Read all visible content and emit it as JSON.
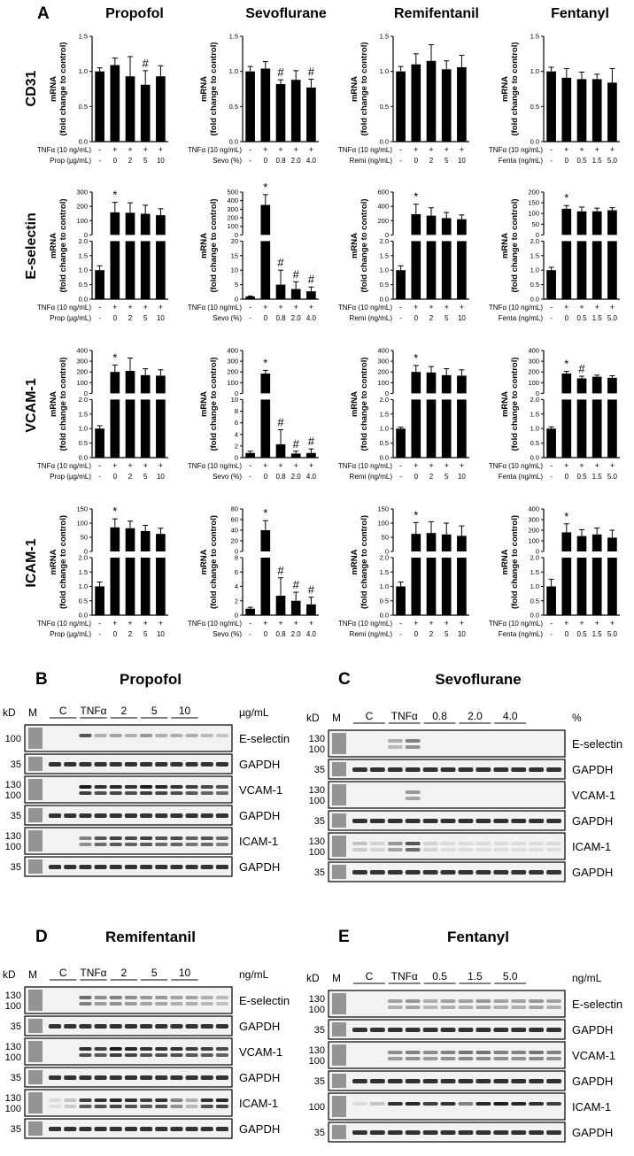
{
  "figure": {
    "panel_a_letter": "A",
    "drugs": [
      "Propofol",
      "Sevoflurane",
      "Remifentanil",
      "Fentanyl"
    ],
    "markers": [
      "CD31",
      "E-selectin",
      "VCAM-1",
      "ICAM-1"
    ],
    "ylabel_line1": "mRNA",
    "ylabel_line2": "(fold change to control)",
    "tnf_label": "TNFα (10 ng/mL)",
    "tnf_signs": [
      "-",
      "+",
      "+",
      "+",
      "+",
      "+"
    ],
    "dose_labels": [
      "Prop (µg/mL)",
      "Sevo (%)",
      "Remi (ng/mL)",
      "Fenta (ng/mL)"
    ],
    "dose_values": [
      [
        "-",
        "0",
        "2",
        "5",
        "10"
      ],
      [
        "-",
        "0",
        "0.8",
        "2.0",
        "4.0"
      ],
      [
        "-",
        "0",
        "2",
        "5",
        "10"
      ],
      [
        "-",
        "0",
        "0.5",
        "1.5",
        "5.0"
      ]
    ]
  },
  "chart_data": [
    {
      "type": "bar",
      "drug": "Propofol",
      "marker": "CD31",
      "categories": [
        "C",
        "TNFα",
        "2",
        "5",
        "10"
      ],
      "values": [
        1.0,
        1.09,
        0.93,
        0.81,
        0.93
      ],
      "errors": [
        0.05,
        0.1,
        0.28,
        0.2,
        0.15
      ],
      "ylim": [
        0,
        1.5
      ],
      "yticks": [
        "0.0",
        "0.5",
        "1.0",
        "1.5"
      ],
      "annotations": [
        "",
        "",
        "",
        "#",
        ""
      ]
    },
    {
      "type": "bar",
      "drug": "Sevoflurane",
      "marker": "CD31",
      "categories": [
        "C",
        "TNFα",
        "0.8",
        "2.0",
        "4.0"
      ],
      "values": [
        1.0,
        1.04,
        0.82,
        0.88,
        0.77
      ],
      "errors": [
        0.07,
        0.1,
        0.06,
        0.13,
        0.12
      ],
      "ylim": [
        0,
        1.5
      ],
      "yticks": [
        "0.0",
        "0.5",
        "1.0",
        "1.5"
      ],
      "annotations": [
        "",
        "",
        "#",
        "",
        "#"
      ]
    },
    {
      "type": "bar",
      "drug": "Remifentanil",
      "marker": "CD31",
      "categories": [
        "C",
        "TNFα",
        "2",
        "5",
        "10"
      ],
      "values": [
        1.0,
        1.1,
        1.15,
        1.03,
        1.06
      ],
      "errors": [
        0.07,
        0.15,
        0.23,
        0.12,
        0.17
      ],
      "ylim": [
        0,
        1.5
      ],
      "yticks": [
        "0.0",
        "0.5",
        "1.0",
        "1.5"
      ],
      "annotations": [
        "",
        "",
        "",
        "",
        ""
      ]
    },
    {
      "type": "bar",
      "drug": "Fentanyl",
      "marker": "CD31",
      "categories": [
        "C",
        "TNFα",
        "0.5",
        "1.5",
        "5.0"
      ],
      "values": [
        1.0,
        0.91,
        0.89,
        0.89,
        0.84
      ],
      "errors": [
        0.06,
        0.13,
        0.1,
        0.07,
        0.2
      ],
      "ylim": [
        0,
        1.5
      ],
      "yticks": [
        "0.0",
        "0.5",
        "1.0",
        "1.5"
      ],
      "annotations": [
        "",
        "",
        "",
        "",
        ""
      ]
    },
    {
      "type": "bar",
      "drug": "Propofol",
      "marker": "E-selectin",
      "categories": [
        "C",
        "TNFα",
        "2",
        "5",
        "10"
      ],
      "values": [
        1.0,
        158,
        155,
        148,
        138
      ],
      "errors": [
        0.15,
        70,
        70,
        60,
        45
      ],
      "broken": true,
      "upper_ylim": [
        0,
        300
      ],
      "upper_yticks": [
        "0",
        "100",
        "200",
        "300"
      ],
      "lower_ylim": [
        0,
        2.0
      ],
      "lower_yticks": [
        "0.0",
        "0.5",
        "1.0",
        "1.5",
        "2.0"
      ],
      "annotations": [
        "",
        "*",
        "",
        "",
        ""
      ]
    },
    {
      "type": "bar",
      "drug": "Sevoflurane",
      "marker": "E-selectin",
      "categories": [
        "C",
        "TNFα",
        "0.8",
        "2.0",
        "4.0"
      ],
      "values": [
        0.9,
        350,
        5,
        3.5,
        2.7
      ],
      "errors": [
        0.2,
        120,
        5,
        2.5,
        1.5
      ],
      "broken": true,
      "upper_ylim": [
        0,
        500
      ],
      "upper_yticks": [
        "0",
        "100",
        "200",
        "300",
        "400",
        "500"
      ],
      "lower_ylim": [
        0,
        20
      ],
      "lower_yticks": [
        "0",
        "5",
        "10",
        "15",
        "20"
      ],
      "annotations": [
        "",
        "*",
        "#",
        "#",
        "#"
      ]
    },
    {
      "type": "bar",
      "drug": "Remifentanil",
      "marker": "E-selectin",
      "categories": [
        "C",
        "TNFα",
        "2",
        "5",
        "10"
      ],
      "values": [
        1.0,
        290,
        270,
        235,
        220
      ],
      "errors": [
        0.15,
        140,
        110,
        80,
        60
      ],
      "broken": true,
      "upper_ylim": [
        0,
        600
      ],
      "upper_yticks": [
        "0",
        "200",
        "400",
        "600"
      ],
      "lower_ylim": [
        0,
        2.0
      ],
      "lower_yticks": [
        "0.0",
        "0.5",
        "1.0",
        "1.5",
        "2.0"
      ],
      "annotations": [
        "",
        "*",
        "",
        "",
        ""
      ]
    },
    {
      "type": "bar",
      "drug": "Fentanyl",
      "marker": "E-selectin",
      "categories": [
        "C",
        "TNFα",
        "0.5",
        "1.5",
        "5.0"
      ],
      "values": [
        1.0,
        122,
        110,
        110,
        115
      ],
      "errors": [
        0.1,
        15,
        20,
        15,
        12
      ],
      "broken": true,
      "upper_ylim": [
        0,
        200
      ],
      "upper_yticks": [
        "0",
        "50",
        "100",
        "150",
        "200"
      ],
      "lower_ylim": [
        0,
        2.0
      ],
      "lower_yticks": [
        "0.0",
        "0.5",
        "1.0",
        "1.5",
        "2.0"
      ],
      "annotations": [
        "",
        "*",
        "",
        "",
        ""
      ]
    },
    {
      "type": "bar",
      "drug": "Propofol",
      "marker": "VCAM-1",
      "categories": [
        "C",
        "TNFα",
        "2",
        "5",
        "10"
      ],
      "values": [
        1.0,
        200,
        210,
        170,
        165
      ],
      "errors": [
        0.1,
        65,
        120,
        60,
        55
      ],
      "broken": true,
      "upper_ylim": [
        0,
        400
      ],
      "upper_yticks": [
        "0",
        "100",
        "200",
        "300",
        "400"
      ],
      "lower_ylim": [
        0,
        2.0
      ],
      "lower_yticks": [
        "0.0",
        "0.5",
        "1.0",
        "1.5",
        "2.0"
      ],
      "annotations": [
        "",
        "*",
        "",
        "",
        ""
      ]
    },
    {
      "type": "bar",
      "drug": "Sevoflurane",
      "marker": "VCAM-1",
      "categories": [
        "C",
        "TNFα",
        "0.8",
        "2.0",
        "4.0"
      ],
      "values": [
        0.8,
        185,
        2.3,
        0.7,
        0.8
      ],
      "errors": [
        0.3,
        30,
        2.5,
        0.4,
        0.7
      ],
      "broken": true,
      "upper_ylim": [
        0,
        400
      ],
      "upper_yticks": [
        "0",
        "100",
        "200",
        "300",
        "400"
      ],
      "lower_ylim": [
        0,
        10
      ],
      "lower_yticks": [
        "0",
        "2",
        "4",
        "6",
        "8",
        "10"
      ],
      "annotations": [
        "",
        "*",
        "#",
        "#",
        "#"
      ]
    },
    {
      "type": "bar",
      "drug": "Remifentanil",
      "marker": "VCAM-1",
      "categories": [
        "C",
        "TNFα",
        "2",
        "5",
        "10"
      ],
      "values": [
        1.0,
        200,
        195,
        170,
        165
      ],
      "errors": [
        0.05,
        60,
        55,
        60,
        55
      ],
      "broken": true,
      "upper_ylim": [
        0,
        400
      ],
      "upper_yticks": [
        "0",
        "100",
        "200",
        "300",
        "400"
      ],
      "lower_ylim": [
        0,
        2.0
      ],
      "lower_yticks": [
        "0.0",
        "0.5",
        "1.0",
        "1.5",
        "2.0"
      ],
      "annotations": [
        "",
        "*",
        "",
        "",
        ""
      ]
    },
    {
      "type": "bar",
      "drug": "Fentanyl",
      "marker": "VCAM-1",
      "categories": [
        "C",
        "TNFα",
        "0.5",
        "1.5",
        "5.0"
      ],
      "values": [
        1.0,
        185,
        140,
        155,
        145
      ],
      "errors": [
        0.06,
        20,
        20,
        15,
        20
      ],
      "broken": true,
      "upper_ylim": [
        0,
        400
      ],
      "upper_yticks": [
        "0",
        "100",
        "200",
        "300",
        "400"
      ],
      "lower_ylim": [
        0,
        2.0
      ],
      "lower_yticks": [
        "0.0",
        "0.5",
        "1.0",
        "1.5",
        "2.0"
      ],
      "annotations": [
        "",
        "*",
        "#",
        "",
        ""
      ]
    },
    {
      "type": "bar",
      "drug": "Propofol",
      "marker": "ICAM-1",
      "categories": [
        "C",
        "TNFα",
        "2",
        "5",
        "10"
      ],
      "values": [
        1.0,
        85,
        82,
        72,
        62
      ],
      "errors": [
        0.15,
        30,
        25,
        20,
        20
      ],
      "broken": true,
      "upper_ylim": [
        0,
        150
      ],
      "upper_yticks": [
        "0",
        "50",
        "100",
        "150"
      ],
      "lower_ylim": [
        0,
        2.0
      ],
      "lower_yticks": [
        "0.0",
        "0.5",
        "1.0",
        "1.5",
        "2.0"
      ],
      "annotations": [
        "",
        "*",
        "",
        "",
        ""
      ]
    },
    {
      "type": "bar",
      "drug": "Sevoflurane",
      "marker": "ICAM-1",
      "categories": [
        "C",
        "TNFα",
        "0.8",
        "2.0",
        "4.0"
      ],
      "values": [
        0.9,
        40,
        2.7,
        2.0,
        1.5
      ],
      "errors": [
        0.2,
        18,
        2.5,
        1.2,
        1.0
      ],
      "broken": true,
      "upper_ylim": [
        0,
        80
      ],
      "upper_yticks": [
        "0",
        "20",
        "40",
        "60",
        "80"
      ],
      "lower_ylim": [
        0,
        8
      ],
      "lower_yticks": [
        "0",
        "2",
        "4",
        "6",
        "8"
      ],
      "annotations": [
        "",
        "*",
        "#",
        "#",
        "#"
      ]
    },
    {
      "type": "bar",
      "drug": "Remifentanil",
      "marker": "ICAM-1",
      "categories": [
        "C",
        "TNFα",
        "2",
        "5",
        "10"
      ],
      "values": [
        1.0,
        62,
        65,
        60,
        55
      ],
      "errors": [
        0.15,
        40,
        40,
        40,
        35
      ],
      "broken": true,
      "upper_ylim": [
        0,
        150
      ],
      "upper_yticks": [
        "0",
        "50",
        "100",
        "150"
      ],
      "lower_ylim": [
        0,
        2.0
      ],
      "lower_yticks": [
        "0.0",
        "0.5",
        "1.0",
        "1.5",
        "2.0"
      ],
      "annotations": [
        "",
        "*",
        "",
        "",
        ""
      ]
    },
    {
      "type": "bar",
      "drug": "Fentanyl",
      "marker": "ICAM-1",
      "categories": [
        "C",
        "TNFα",
        "0.5",
        "1.5",
        "5.0"
      ],
      "values": [
        1.0,
        180,
        145,
        160,
        130
      ],
      "errors": [
        0.25,
        80,
        60,
        60,
        70
      ],
      "broken": true,
      "upper_ylim": [
        0,
        400
      ],
      "upper_yticks": [
        "0",
        "100",
        "200",
        "300",
        "400"
      ],
      "lower_ylim": [
        0,
        2.0
      ],
      "lower_yticks": [
        "0.0",
        "0.5",
        "1.0",
        "1.5",
        "2.0"
      ],
      "annotations": [
        "",
        "*",
        "",
        "",
        ""
      ]
    }
  ],
  "blots": [
    {
      "letter": "B",
      "title": "Propofol",
      "unit": "µg/mL",
      "groups": [
        "C",
        "TNFα",
        "2",
        "5",
        "10"
      ],
      "kd": "kD",
      "m": "M",
      "strips": [
        {
          "label": "E-selectin",
          "mw": [
            "100"
          ],
          "kind": "target",
          "levels": [
            0,
            0,
            0.7,
            0.3,
            0.35,
            0.3,
            0.4,
            0.3,
            0.3,
            0.3,
            0.25,
            0.2
          ]
        },
        {
          "label": "GAPDH",
          "mw": [
            "35"
          ],
          "kind": "loading"
        },
        {
          "label": "VCAM-1",
          "mw": [
            "130",
            "100"
          ],
          "kind": "target",
          "levels": [
            0,
            0,
            0.95,
            0.85,
            0.9,
            0.85,
            0.95,
            0.9,
            0.85,
            0.8,
            0.75,
            0.7
          ]
        },
        {
          "label": "GAPDH",
          "mw": [
            "35"
          ],
          "kind": "loading"
        },
        {
          "label": "ICAM-1",
          "mw": [
            "130",
            "100"
          ],
          "kind": "target",
          "levels": [
            0,
            0,
            0.5,
            0.7,
            0.8,
            0.75,
            0.8,
            0.7,
            0.75,
            0.65,
            0.7,
            0.6
          ]
        },
        {
          "label": "GAPDH",
          "mw": [
            "35"
          ],
          "kind": "loading"
        }
      ]
    },
    {
      "letter": "C",
      "title": "Sevoflurane",
      "unit": "%",
      "groups": [
        "C",
        "TNFα",
        "0.8",
        "2.0",
        "4.0"
      ],
      "kd": "kD",
      "m": "M",
      "strips": [
        {
          "label": "E-selectin",
          "mw": [
            "130",
            "100"
          ],
          "kind": "target",
          "levels": [
            0,
            0,
            0.3,
            0.5,
            0,
            0,
            0,
            0,
            0,
            0,
            0,
            0
          ]
        },
        {
          "label": "GAPDH",
          "mw": [
            "35"
          ],
          "kind": "loading"
        },
        {
          "label": "VCAM-1",
          "mw": [
            "130",
            "100"
          ],
          "kind": "target",
          "levels": [
            0,
            0,
            0,
            0.4,
            0,
            0,
            0,
            0,
            0,
            0,
            0,
            0
          ]
        },
        {
          "label": "GAPDH",
          "mw": [
            "35"
          ],
          "kind": "loading"
        },
        {
          "label": "ICAM-1",
          "mw": [
            "130",
            "100"
          ],
          "kind": "target",
          "levels": [
            0.2,
            0.15,
            0.4,
            0.7,
            0.15,
            0.1,
            0.1,
            0.1,
            0.1,
            0.1,
            0.1,
            0.1
          ]
        },
        {
          "label": "GAPDH",
          "mw": [
            "35"
          ],
          "kind": "loading"
        }
      ]
    },
    {
      "letter": "D",
      "title": "Remifentanil",
      "unit": "ng/mL",
      "groups": [
        "C",
        "TNFα",
        "2",
        "5",
        "10"
      ],
      "kd": "kD",
      "m": "M",
      "strips": [
        {
          "label": "E-selectin",
          "mw": [
            "130",
            "100"
          ],
          "kind": "target",
          "levels": [
            0,
            0,
            0.6,
            0.45,
            0.5,
            0.45,
            0.4,
            0.4,
            0.35,
            0.35,
            0.3,
            0.25
          ]
        },
        {
          "label": "GAPDH",
          "mw": [
            "35"
          ],
          "kind": "loading"
        },
        {
          "label": "VCAM-1",
          "mw": [
            "130",
            "100"
          ],
          "kind": "target",
          "levels": [
            0,
            0,
            0.85,
            0.8,
            0.95,
            0.9,
            0.85,
            0.85,
            0.85,
            0.8,
            0.8,
            0.75
          ]
        },
        {
          "label": "GAPDH",
          "mw": [
            "35"
          ],
          "kind": "loading"
        },
        {
          "label": "ICAM-1",
          "mw": [
            "130",
            "100"
          ],
          "kind": "target",
          "levels": [
            0.1,
            0.2,
            0.8,
            0.85,
            0.9,
            0.85,
            0.8,
            0.85,
            0.5,
            0.3,
            0.85,
            0.9
          ]
        },
        {
          "label": "GAPDH",
          "mw": [
            "35"
          ],
          "kind": "loading"
        }
      ]
    },
    {
      "letter": "E",
      "title": "Fentanyl",
      "unit": "ng/mL",
      "groups": [
        "C",
        "TNFα",
        "0.5",
        "1.5",
        "5.0"
      ],
      "kd": "kD",
      "m": "M",
      "strips": [
        {
          "label": "E-selectin",
          "mw": [
            "130",
            "100"
          ],
          "kind": "target",
          "levels": [
            0,
            0,
            0.35,
            0.4,
            0.3,
            0.35,
            0.35,
            0.4,
            0.35,
            0.35,
            0.4,
            0.35
          ]
        },
        {
          "label": "GAPDH",
          "mw": [
            "35"
          ],
          "kind": "loading"
        },
        {
          "label": "VCAM-1",
          "mw": [
            "130",
            "100"
          ],
          "kind": "target",
          "levels": [
            0,
            0,
            0.45,
            0.5,
            0.45,
            0.5,
            0.55,
            0.55,
            0.5,
            0.5,
            0.55,
            0.5
          ]
        },
        {
          "label": "GAPDH",
          "mw": [
            "35"
          ],
          "kind": "loading"
        },
        {
          "label": "ICAM-1",
          "mw": [
            "100"
          ],
          "kind": "target",
          "levels": [
            0.1,
            0.2,
            0.85,
            0.9,
            0.8,
            0.85,
            0.5,
            0.9,
            0.95,
            0.9,
            0.85,
            0.8
          ]
        },
        {
          "label": "GAPDH",
          "mw": [
            "35"
          ],
          "kind": "loading"
        }
      ]
    }
  ]
}
